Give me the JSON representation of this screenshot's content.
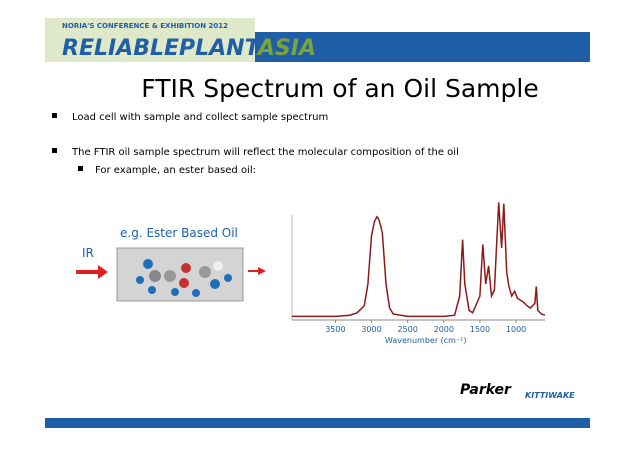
{
  "header": {
    "kicker": "NORIA'S CONFERENCE & EXHIBITION 2012",
    "logo": "RELIABLEPLANT",
    "logo_accent": "ASIA"
  },
  "title": "FTIR Spectrum of an Oil Sample",
  "bullets": [
    "Load cell with sample and collect sample spectrum",
    "The FTIR oil sample spectrum will reflect the molecular composition of the oil"
  ],
  "sub_bullets": [
    "For example, an ester based oil:"
  ],
  "figure": {
    "caption": "e.g. Ester Based Oil",
    "input": "IR"
  },
  "chart_data": {
    "type": "line",
    "color": "#8b1a1a",
    "xlabel": "Wavenumber (cm⁻¹)",
    "x": [
      4100,
      3800,
      3500,
      3300,
      3200,
      3100,
      3050,
      3000,
      2960,
      2925,
      2900,
      2870,
      2850,
      2800,
      2750,
      2700,
      2500,
      2200,
      2000,
      1850,
      1780,
      1740,
      1710,
      1650,
      1600,
      1500,
      1460,
      1420,
      1380,
      1340,
      1300,
      1240,
      1200,
      1170,
      1130,
      1100,
      1060,
      1020,
      980,
      900,
      850,
      800,
      740,
      720,
      700,
      650,
      600
    ],
    "values": [
      3,
      3,
      3,
      4,
      6,
      12,
      30,
      70,
      82,
      86,
      84,
      78,
      72,
      30,
      10,
      5,
      3,
      3,
      3,
      4,
      20,
      67,
      30,
      8,
      6,
      20,
      63,
      30,
      45,
      20,
      25,
      98,
      60,
      97,
      40,
      28,
      20,
      24,
      18,
      15,
      12,
      10,
      14,
      28,
      8,
      5,
      4
    ],
    "xlim": [
      4100,
      600
    ],
    "ylim": [
      0,
      100
    ],
    "xticks": [
      3500,
      3000,
      2500,
      2000,
      1500,
      1000
    ]
  },
  "footer": {
    "logos": [
      "Parker",
      "KITTIWAKE"
    ]
  }
}
